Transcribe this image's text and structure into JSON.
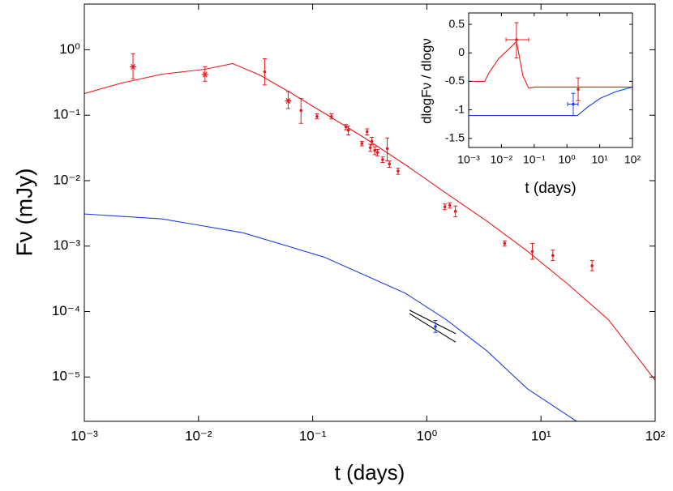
{
  "chart_data": [
    {
      "type": "line",
      "xlabel": "t (days)",
      "ylabel": "Fν (mJy)",
      "xscale": "log",
      "yscale": "log",
      "xlim": [
        0.001,
        100
      ],
      "ylim": [
        2.1e-06,
        5
      ],
      "xticks": [
        {
          "value": 0.001,
          "label": "10⁻³"
        },
        {
          "value": 0.01,
          "label": "10⁻²"
        },
        {
          "value": 0.1,
          "label": "10⁻¹"
        },
        {
          "value": 1,
          "label": "10⁰"
        },
        {
          "value": 10,
          "label": "10¹"
        },
        {
          "value": 100,
          "label": "10²"
        }
      ],
      "yticks": [
        {
          "value": 1e-05,
          "label": "10⁻⁵"
        },
        {
          "value": 0.0001,
          "label": "10⁻⁴"
        },
        {
          "value": 0.001,
          "label": "10⁻³"
        },
        {
          "value": 0.01,
          "label": "10⁻²"
        },
        {
          "value": 0.1,
          "label": "10⁻¹"
        },
        {
          "value": 1,
          "label": "10⁰"
        }
      ],
      "series": [
        {
          "style": "line",
          "color": "#e8191c",
          "x": [
            0.001,
            0.00212,
            0.00481,
            0.0114,
            0.0199,
            0.0343,
            0.0607,
            0.126,
            0.287,
            0.65,
            1.48,
            3.36,
            7.6,
            17.3,
            39,
            100
          ],
          "values": [
            0.214,
            0.31,
            0.425,
            0.504,
            0.616,
            0.413,
            0.233,
            0.108,
            0.0446,
            0.0174,
            0.0064,
            0.00241,
            0.00084,
            0.00026,
            7.5e-05,
            8.9e-06
          ]
        },
        {
          "style": "line",
          "color": "#1f3fe0",
          "x": [
            0.001,
            0.00481,
            0.0246,
            0.126,
            0.65,
            1.48,
            3.36,
            7.6,
            20.5
          ],
          "values": [
            0.0031,
            0.0026,
            0.0016,
            0.00068,
            0.00019,
            7.5e-05,
            2.5e-05,
            6.6e-06,
            2.1e-06
          ]
        },
        {
          "style": "line",
          "color": "#000000",
          "x": [
            0.705,
            1.79
          ],
          "values": [
            0.000105,
            4.6e-05
          ]
        },
        {
          "style": "line",
          "color": "#000000",
          "x": [
            0.705,
            1.79
          ],
          "values": [
            9.3e-05,
            3.4e-05
          ]
        },
        {
          "style": "points",
          "marker": "star",
          "color": "#e8191c",
          "x": [
            0.00267,
            0.0114,
            0.061
          ],
          "values": [
            0.55,
            0.42,
            0.166
          ],
          "ylow": [
            0.36,
            0.33,
            0.127
          ],
          "yhigh": [
            0.87,
            0.55,
            0.23
          ]
        },
        {
          "style": "points",
          "marker": "dot",
          "color": "#e8191c",
          "x": [
            0.038,
            0.079,
            0.109,
            0.146,
            0.196,
            0.205,
            0.27,
            0.3,
            0.33,
            0.32,
            0.35,
            0.37,
            0.41,
            0.45,
            0.47,
            0.56,
            1.44,
            1.59,
            1.78,
            4.8,
            8.4,
            12.7,
            28
          ],
          "values": [
            0.46,
            0.118,
            0.096,
            0.096,
            0.066,
            0.059,
            0.037,
            0.056,
            0.04,
            0.032,
            0.029,
            0.027,
            0.021,
            0.031,
            0.018,
            0.014,
            0.004,
            0.0042,
            0.0034,
            0.0011,
            0.00083,
            0.00072,
            0.0005
          ],
          "ylow": [
            0.29,
            0.075,
            0.088,
            0.088,
            0.06,
            0.05,
            0.034,
            0.05,
            0.035,
            0.028,
            0.025,
            0.024,
            0.019,
            0.02,
            0.016,
            0.0125,
            0.0036,
            0.0038,
            0.0028,
            0.001,
            0.00063,
            0.0006,
            0.00042
          ],
          "yhigh": [
            0.73,
            0.18,
            0.105,
            0.105,
            0.072,
            0.068,
            0.04,
            0.062,
            0.046,
            0.036,
            0.033,
            0.03,
            0.023,
            0.045,
            0.02,
            0.0155,
            0.0044,
            0.0046,
            0.0041,
            0.0012,
            0.0011,
            0.00087,
            0.0006
          ]
        },
        {
          "style": "points",
          "marker": "dot",
          "color": "#1f3fe0",
          "x": [
            1.19
          ],
          "values": [
            5.9e-05
          ],
          "ylow": [
            4.8e-05
          ],
          "yhigh": [
            7.3e-05
          ]
        }
      ]
    },
    {
      "type": "line",
      "xlabel": "t (days)",
      "ylabel": "dlogFν / dlogν",
      "xscale": "log",
      "yscale": "linear",
      "xlim": [
        0.001,
        100
      ],
      "ylim": [
        -1.66,
        0.7
      ],
      "xticks": [
        {
          "value": 0.001,
          "label": "10⁻³"
        },
        {
          "value": 0.01,
          "label": "10⁻²"
        },
        {
          "value": 0.1,
          "label": "10⁻¹"
        },
        {
          "value": 1,
          "label": "10⁰"
        },
        {
          "value": 10,
          "label": "10¹"
        },
        {
          "value": 100,
          "label": "10²"
        }
      ],
      "yticks": [
        -1.5,
        -1,
        -0.5,
        0,
        0.5
      ],
      "series": [
        {
          "style": "line",
          "color": "#e8191c",
          "x": [
            0.001,
            0.0031,
            0.00416,
            0.00823,
            0.0194,
            0.0288,
            0.0454,
            0.0679,
            0.107,
            1.05,
            100
          ],
          "values": [
            -0.5,
            -0.5,
            -0.35,
            -0.1,
            0.1,
            0.2,
            -0.4,
            -0.62,
            -0.6,
            -0.6,
            -0.6
          ]
        },
        {
          "style": "line",
          "color": "#1f3fe0",
          "x": [
            0.001,
            2.1,
            4.3,
            10.2,
            31,
            100
          ],
          "values": [
            -1.1,
            -1.1,
            -0.95,
            -0.8,
            -0.68,
            -0.6
          ]
        },
        {
          "style": "points",
          "marker": "dot",
          "color": "#e8191c",
          "x": [
            0.0288,
            2.2
          ],
          "values": [
            0.23,
            -0.64
          ],
          "ylow": [
            -0.09,
            -0.84
          ],
          "yhigh": [
            0.53,
            -0.44
          ],
          "xlow": [
            0.0138,
            2.2
          ],
          "xhigh": [
            0.068,
            2.2
          ]
        },
        {
          "style": "points",
          "marker": "dot",
          "color": "#1f3fe0",
          "x": [
            1.56
          ],
          "values": [
            -0.9
          ],
          "ylow": [
            -1.1
          ],
          "yhigh": [
            -0.71
          ],
          "xlow": [
            1.05
          ],
          "xhigh": [
            2.2
          ]
        }
      ]
    }
  ]
}
